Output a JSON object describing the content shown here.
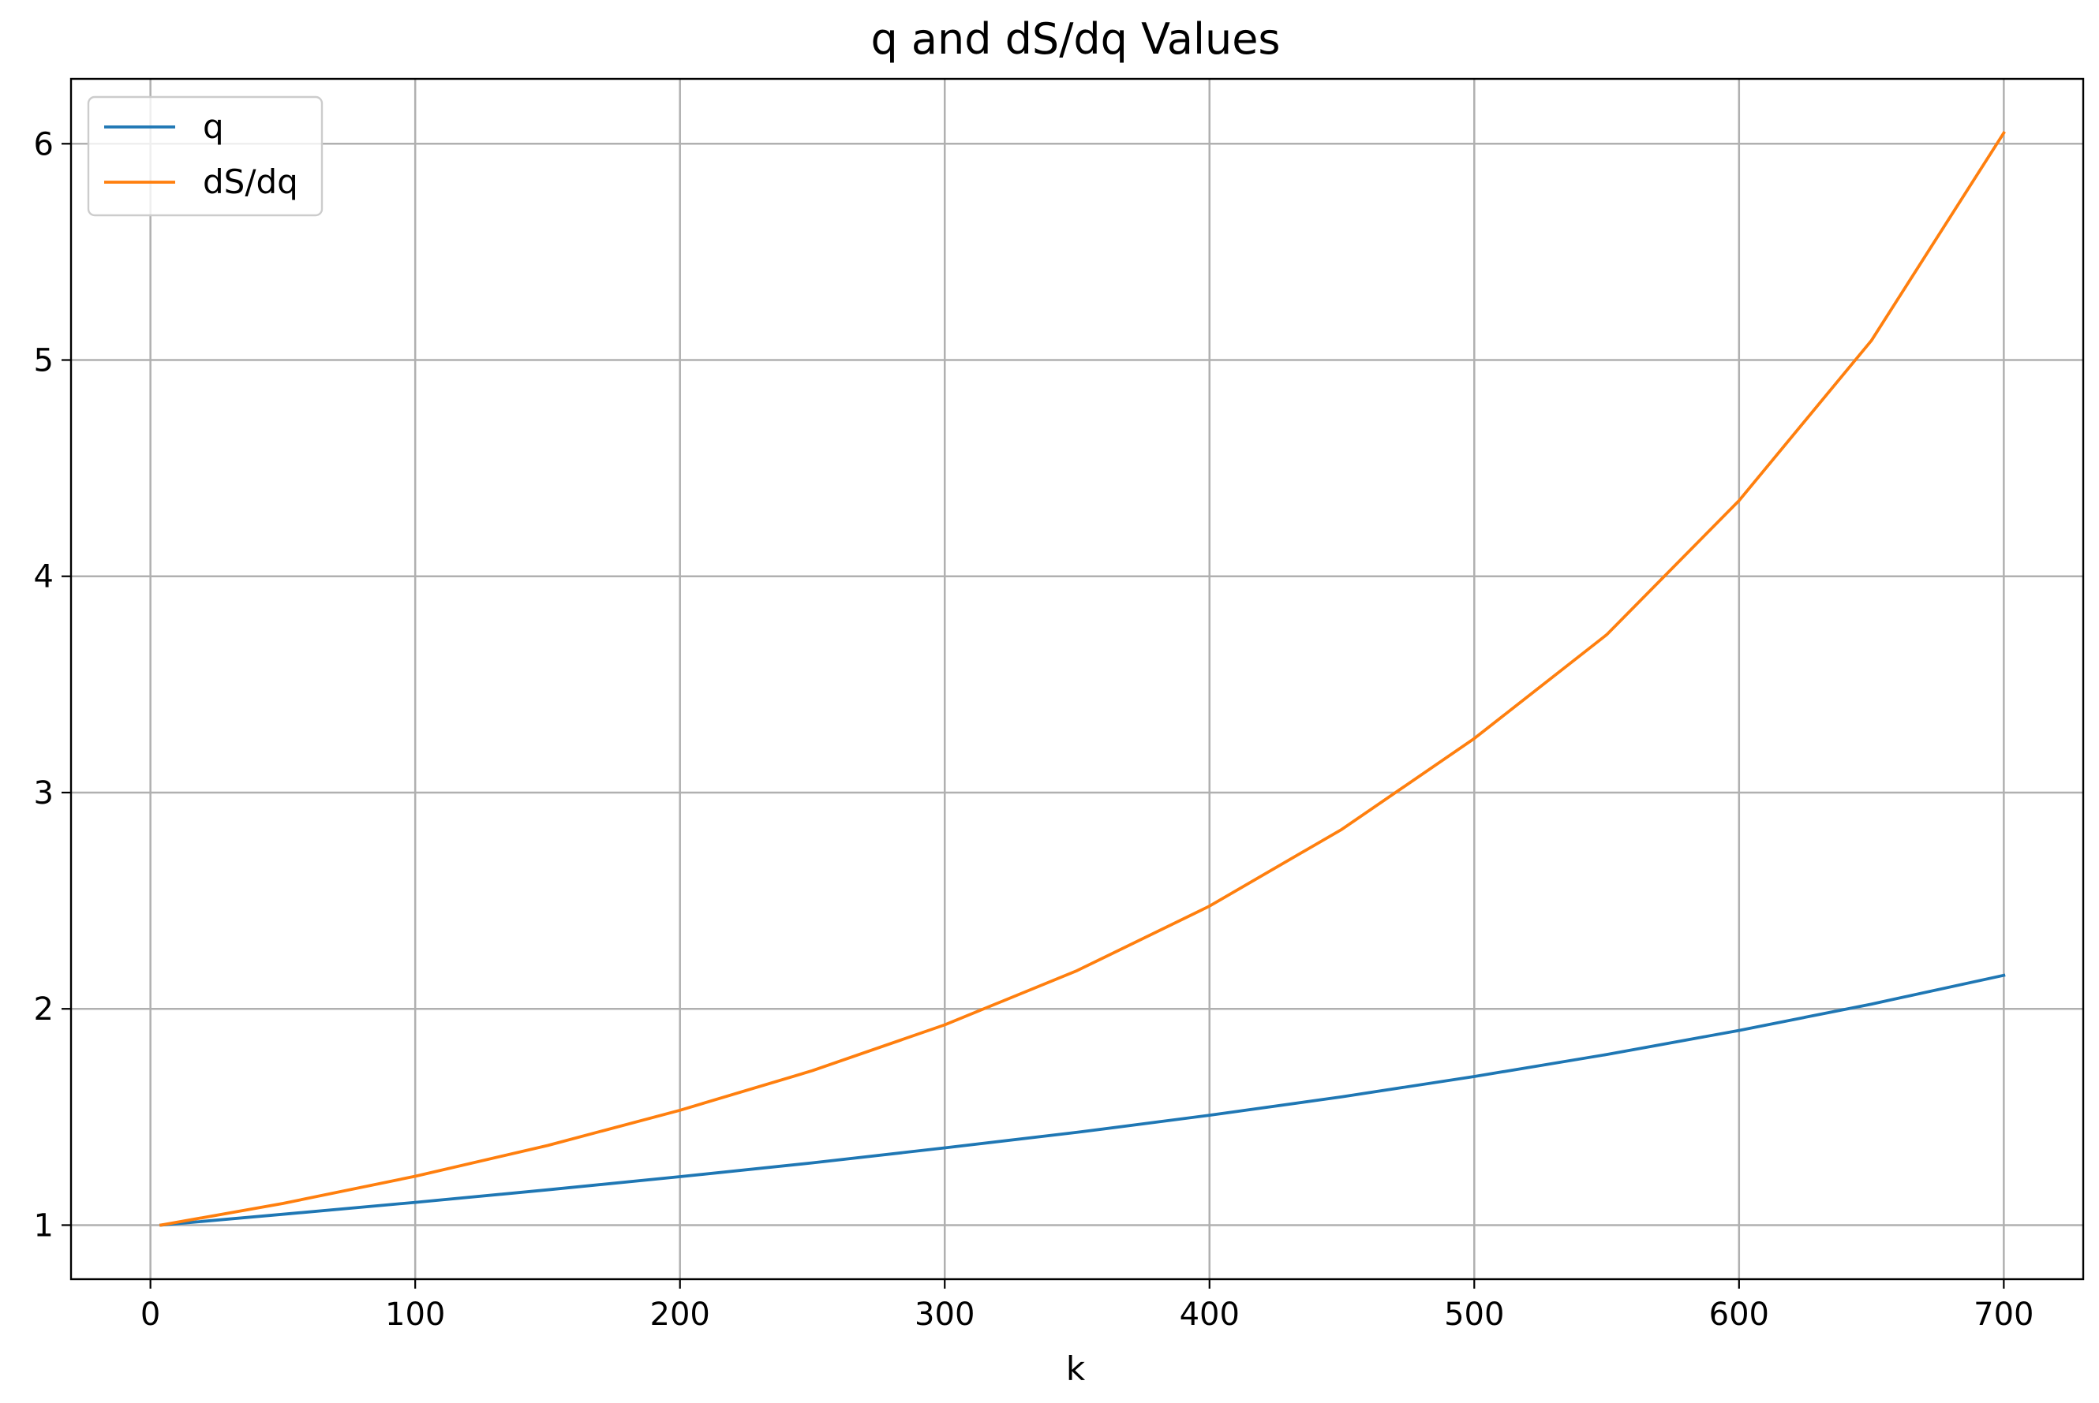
{
  "chart_data": {
    "type": "line",
    "title": "q and dS/dq Values",
    "xlabel": "k",
    "ylabel": "",
    "xlim": [
      -30,
      730
    ],
    "ylim": [
      0.75,
      6.3
    ],
    "xticks": [
      0,
      100,
      200,
      300,
      400,
      500,
      600,
      700
    ],
    "yticks": [
      1,
      2,
      3,
      4,
      5,
      6
    ],
    "grid": true,
    "legend_position": "upper-left",
    "series": [
      {
        "name": "q",
        "color": "#1f77b4",
        "x": [
          4,
          50,
          100,
          150,
          200,
          250,
          300,
          350,
          400,
          450,
          500,
          550,
          600,
          650,
          700
        ],
        "y": [
          1.0,
          1.05,
          1.105,
          1.163,
          1.224,
          1.288,
          1.357,
          1.429,
          1.508,
          1.593,
          1.687,
          1.789,
          1.9,
          2.022,
          2.155
        ]
      },
      {
        "name": "dS/dq",
        "color": "#ff7f0e",
        "x": [
          4,
          50,
          100,
          150,
          200,
          250,
          300,
          350,
          400,
          450,
          500,
          550,
          600,
          650,
          700
        ],
        "y": [
          1.0,
          1.1,
          1.226,
          1.368,
          1.531,
          1.714,
          1.926,
          2.177,
          2.475,
          2.83,
          3.25,
          3.73,
          4.35,
          5.09,
          6.05
        ]
      }
    ]
  }
}
